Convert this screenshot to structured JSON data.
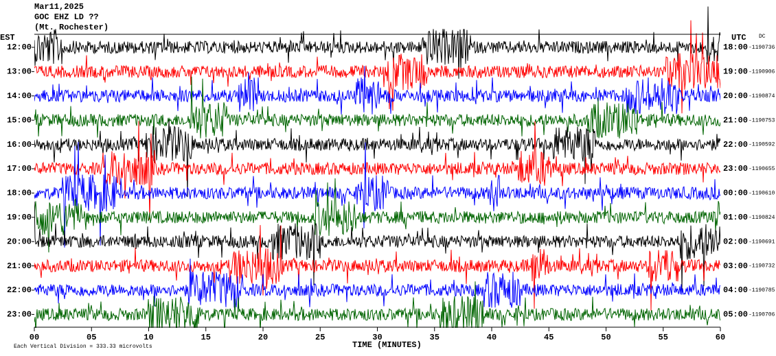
{
  "header": {
    "date": "Mar11,2025",
    "station": "GOC EHZ LD ??",
    "location": "(Mt. Rochester)"
  },
  "left_zone": "EST",
  "right_zone": "UTC",
  "dc_heading": "DC",
  "rows": [
    {
      "local": "12:00",
      "utc": "18:00",
      "dc": "-1190736",
      "color": "#000000"
    },
    {
      "local": "13:00",
      "utc": "19:00",
      "dc": "-1190906",
      "color": "#ff0000"
    },
    {
      "local": "14:00",
      "utc": "20:00",
      "dc": "-1190874",
      "color": "#0000ff"
    },
    {
      "local": "15:00",
      "utc": "21:00",
      "dc": "-1190753",
      "color": "#006400"
    },
    {
      "local": "16:00",
      "utc": "22:00",
      "dc": "-1190592",
      "color": "#000000"
    },
    {
      "local": "17:00",
      "utc": "23:00",
      "dc": "-1190655",
      "color": "#ff0000"
    },
    {
      "local": "18:00",
      "utc": "00:00",
      "dc": "-1190610",
      "color": "#0000ff"
    },
    {
      "local": "19:00",
      "utc": "01:00",
      "dc": "-1190824",
      "color": "#006400"
    },
    {
      "local": "20:00",
      "utc": "02:00",
      "dc": "-1190691",
      "color": "#000000"
    },
    {
      "local": "21:00",
      "utc": "03:00",
      "dc": "-1190732",
      "color": "#ff0000"
    },
    {
      "local": "22:00",
      "utc": "04:00",
      "dc": "-1190785",
      "color": "#0000ff"
    },
    {
      "local": "23:00",
      "utc": "05:00",
      "dc": "-1190706",
      "color": "#006400"
    }
  ],
  "x_axis": {
    "label": "TIME (MINUTES)",
    "xlim": [
      0,
      60
    ],
    "xticks": [
      {
        "value": 0,
        "label": "00"
      },
      {
        "value": 5,
        "label": "05"
      },
      10,
      15,
      20,
      25,
      30,
      35,
      40,
      45,
      50,
      55,
      60
    ]
  },
  "footer": "Each Vertical Division = 333.33 microvolts"
}
